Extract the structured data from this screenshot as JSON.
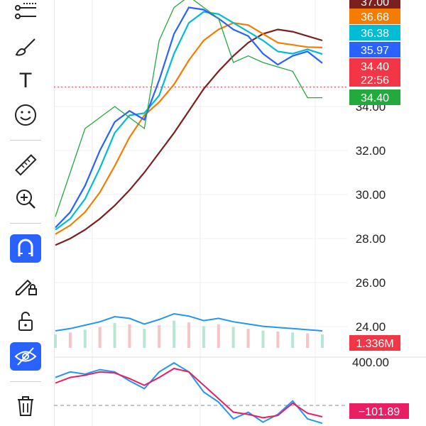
{
  "toolbar": {
    "tools": [
      {
        "id": "fib",
        "icon": "fib-retracement-icon"
      },
      {
        "id": "brush",
        "icon": "brush-icon"
      },
      {
        "id": "text",
        "icon": "text-icon",
        "glyph": "T"
      },
      {
        "id": "emoji",
        "icon": "smiley-icon"
      },
      {
        "id": "ruler",
        "icon": "ruler-icon"
      },
      {
        "id": "zoom",
        "icon": "zoom-in-icon"
      },
      {
        "id": "magnet",
        "icon": "magnet-icon",
        "active": true
      },
      {
        "id": "lock-drawings",
        "icon": "pencil-lock-icon"
      },
      {
        "id": "lock",
        "icon": "unlock-icon"
      },
      {
        "id": "hide",
        "icon": "eye-off-icon",
        "active": true
      },
      {
        "id": "trash",
        "icon": "trash-icon"
      }
    ]
  },
  "chart_data": [
    {
      "type": "line",
      "panel": "price",
      "y_axis_labels": [
        "34.00",
        "32.00",
        "30.00",
        "28.00",
        "26.00",
        "24.00"
      ],
      "y_axis_values": [
        34.0,
        32.0,
        30.0,
        28.0,
        26.0,
        24.0
      ],
      "current_price_line": 34.4,
      "price_tags": [
        {
          "label": "37.00",
          "color": "#7b1f1f"
        },
        {
          "label": "36.68",
          "color": "#f57c00"
        },
        {
          "label": "36.38",
          "color": "#00bcd4"
        },
        {
          "label": "35.97",
          "color": "#2962ff"
        },
        {
          "label": "34.40",
          "sub": "22:56",
          "color": "#f23645"
        },
        {
          "label": "34.40",
          "color": "#22ab3c"
        }
      ],
      "series": [
        {
          "color": "#7b1f1f",
          "values": [
            27.7,
            28.0,
            28.4,
            28.9,
            29.5,
            30.2,
            31.0,
            31.9,
            32.8,
            33.8,
            34.8,
            35.6,
            36.3,
            36.9,
            37.3,
            37.5,
            37.4,
            37.2,
            37.0
          ]
        },
        {
          "color": "#f57c00",
          "values": [
            28.2,
            28.6,
            29.2,
            30.1,
            31.3,
            32.6,
            33.6,
            34.2,
            35.0,
            36.1,
            37.0,
            37.5,
            37.8,
            37.7,
            37.3,
            36.9,
            36.8,
            36.7,
            36.68
          ]
        },
        {
          "color": "#00bcd4",
          "values": [
            28.4,
            28.9,
            29.8,
            31.2,
            32.8,
            33.6,
            33.7,
            34.5,
            36.4,
            37.8,
            38.3,
            38.2,
            37.8,
            37.4,
            37.0,
            36.5,
            36.4,
            36.6,
            36.38
          ]
        },
        {
          "color": "#2962ff",
          "values": [
            28.5,
            29.2,
            30.4,
            32.0,
            33.3,
            33.8,
            33.4,
            35.2,
            37.3,
            38.5,
            38.4,
            38.0,
            37.5,
            37.2,
            36.4,
            35.9,
            36.3,
            36.5,
            35.97
          ]
        },
        {
          "color": "#22ab3c",
          "values": [
            29.0,
            31.0,
            33.0,
            33.5,
            34.0,
            33.5,
            33.0,
            37.0,
            38.5,
            39.0,
            38.5,
            38.0,
            36.0,
            36.3,
            36.0,
            35.8,
            35.6,
            34.4,
            34.4
          ]
        }
      ]
    },
    {
      "type": "line",
      "panel": "volume",
      "volume_tags": [
        {
          "label": "1.336M",
          "color": "#f23645"
        }
      ],
      "series": [
        {
          "color": "#2196f3",
          "values": [
            0.3,
            0.34,
            0.4,
            0.46,
            0.55,
            0.52,
            0.42,
            0.5,
            0.6,
            0.56,
            0.48,
            0.52,
            0.46,
            0.42,
            0.38,
            0.36,
            0.34,
            0.32,
            0.3
          ]
        }
      ]
    },
    {
      "type": "line",
      "panel": "oscillator",
      "y_axis_labels": [
        "400.00"
      ],
      "y_axis_values": [
        400
      ],
      "value_tags": [
        {
          "label": "−101.89",
          "color": "#e91e63"
        }
      ],
      "series": [
        {
          "color": "#2196f3",
          "values": [
            250,
            300,
            280,
            320,
            300,
            220,
            150,
            300,
            380,
            300,
            120,
            30,
            -120,
            -60,
            -150,
            -80,
            40,
            -120,
            -160
          ]
        },
        {
          "color": "#e91e63",
          "values": [
            200,
            250,
            270,
            300,
            290,
            240,
            180,
            250,
            330,
            300,
            180,
            60,
            -60,
            -80,
            -110,
            -90,
            20,
            -70,
            -101.89
          ]
        }
      ]
    }
  ]
}
